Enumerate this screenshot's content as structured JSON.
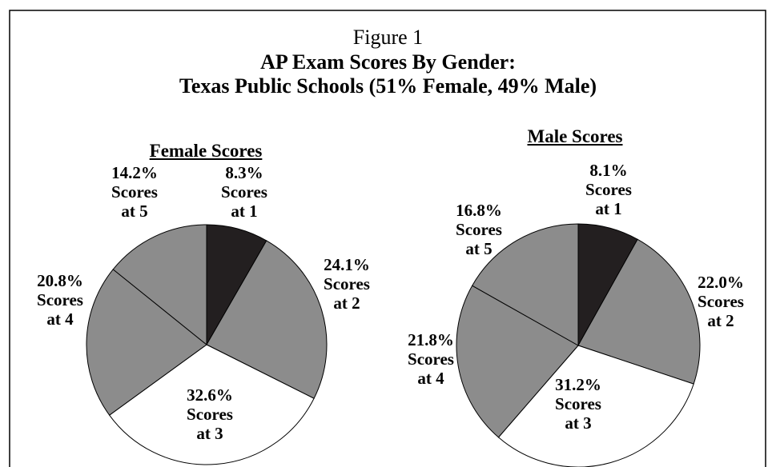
{
  "figure_label": "Figure 1",
  "title": "AP Exam Scores  By Gender:",
  "subtitle": "Texas Public Schools (51% Female, 49% Male)",
  "chart_data": [
    {
      "type": "pie",
      "title": "Female Scores",
      "categories": [
        "Scores at 1",
        "Scores at 2",
        "Scores at 3",
        "Scores at 4",
        "Scores at 5"
      ],
      "values": [
        8.3,
        24.1,
        32.6,
        20.8,
        14.2
      ],
      "value_labels": [
        "8.3%",
        "24.1%",
        "32.6%",
        "20.8%",
        "14.2%"
      ],
      "colors": [
        "#231f20",
        "#8c8c8c",
        "#ffffff",
        "#8c8c8c",
        "#8c8c8c"
      ]
    },
    {
      "type": "pie",
      "title": "Male Scores",
      "categories": [
        "Scores at 1",
        "Scores at 2",
        "Scores at 3",
        "Scores at 4",
        "Scores at 5"
      ],
      "values": [
        8.1,
        22.0,
        31.2,
        21.8,
        16.8
      ],
      "value_labels": [
        "8.1%",
        "22.0%",
        "31.2%",
        "21.8%",
        "16.8%"
      ],
      "colors": [
        "#231f20",
        "#8c8c8c",
        "#ffffff",
        "#8c8c8c",
        "#8c8c8c"
      ]
    }
  ]
}
